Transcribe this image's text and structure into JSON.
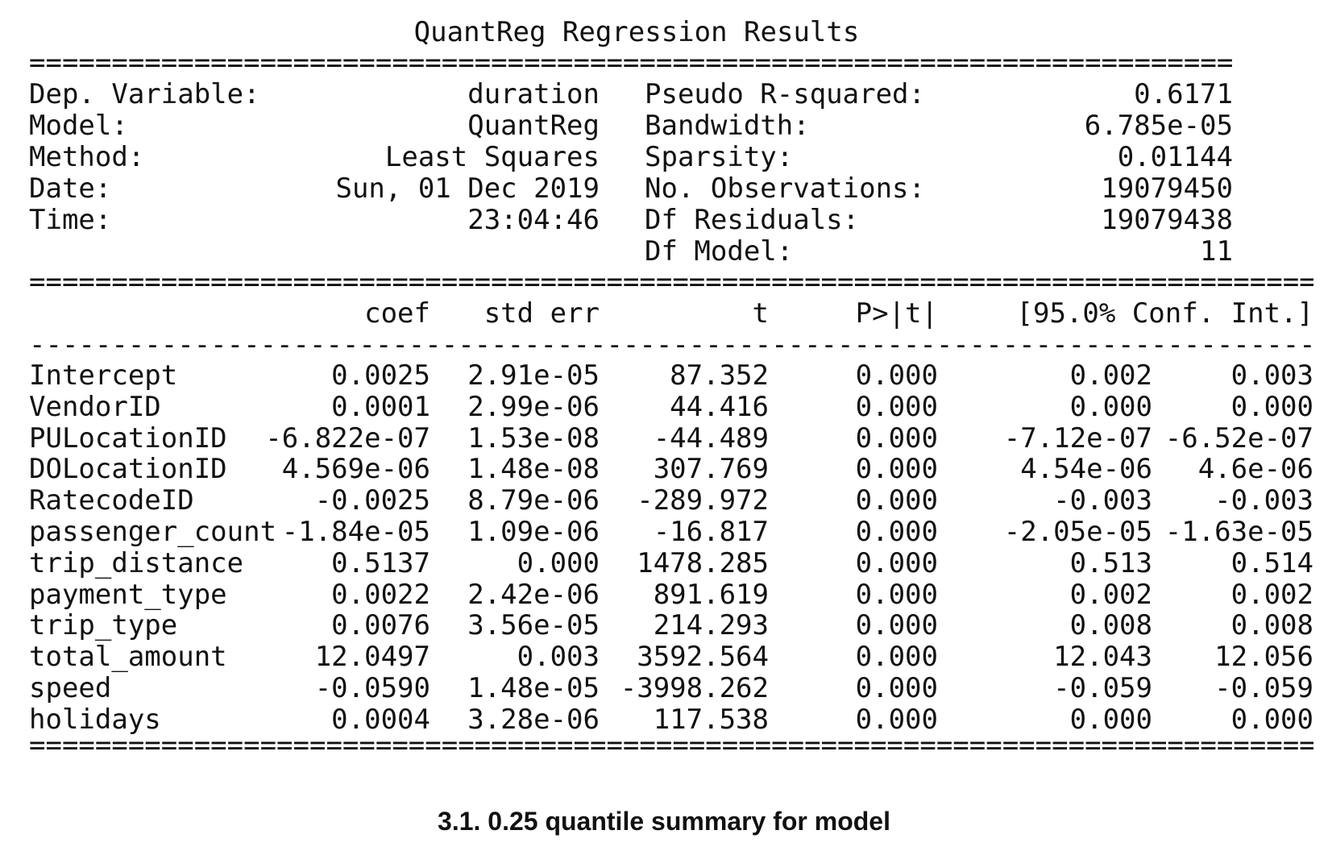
{
  "title": "QuantReg Regression Results",
  "rules": {
    "double_top": "=============================================================================",
    "double_mid": "==================================================================================",
    "dash": "----------------------------------------------------------------------------------",
    "double_bottom": "=================================================================================="
  },
  "info_left": [
    {
      "label": "Dep. Variable:",
      "value": "duration"
    },
    {
      "label": "Model:",
      "value": "QuantReg"
    },
    {
      "label": "Method:",
      "value": "Least Squares"
    },
    {
      "label": "Date:",
      "value": "Sun, 01 Dec 2019"
    },
    {
      "label": "Time:",
      "value": "23:04:46"
    }
  ],
  "info_right": [
    {
      "label": "Pseudo R-squared:",
      "value": "0.6171"
    },
    {
      "label": "Bandwidth:",
      "value": "6.785e-05"
    },
    {
      "label": "Sparsity:",
      "value": "0.01144"
    },
    {
      "label": "No. Observations:",
      "value": "19079450"
    },
    {
      "label": "Df Residuals:",
      "value": "19079438"
    },
    {
      "label": "Df Model:",
      "value": "11"
    }
  ],
  "columns": {
    "coef": "coef",
    "std_err": "std err",
    "t": "t",
    "p": "P>|t|",
    "ci": "[95.0% Conf. Int.]"
  },
  "rows": [
    {
      "name": "Intercept",
      "coef": "0.0025",
      "std_err": "2.91e-05",
      "t": "87.352",
      "p": "0.000",
      "lo": "0.002",
      "hi": "0.003"
    },
    {
      "name": "VendorID",
      "coef": "0.0001",
      "std_err": "2.99e-06",
      "t": "44.416",
      "p": "0.000",
      "lo": "0.000",
      "hi": "0.000"
    },
    {
      "name": "PULocationID",
      "coef": "-6.822e-07",
      "std_err": "1.53e-08",
      "t": "-44.489",
      "p": "0.000",
      "lo": "-7.12e-07",
      "hi": "-6.52e-07"
    },
    {
      "name": "DOLocationID",
      "coef": "4.569e-06",
      "std_err": "1.48e-08",
      "t": "307.769",
      "p": "0.000",
      "lo": "4.54e-06",
      "hi": "4.6e-06"
    },
    {
      "name": "RatecodeID",
      "coef": "-0.0025",
      "std_err": "8.79e-06",
      "t": "-289.972",
      "p": "0.000",
      "lo": "-0.003",
      "hi": "-0.003"
    },
    {
      "name": "passenger_count",
      "coef": "-1.84e-05",
      "std_err": "1.09e-06",
      "t": "-16.817",
      "p": "0.000",
      "lo": "-2.05e-05",
      "hi": "-1.63e-05"
    },
    {
      "name": "trip_distance",
      "coef": "0.5137",
      "std_err": "0.000",
      "t": "1478.285",
      "p": "0.000",
      "lo": "0.513",
      "hi": "0.514"
    },
    {
      "name": "payment_type",
      "coef": "0.0022",
      "std_err": "2.42e-06",
      "t": "891.619",
      "p": "0.000",
      "lo": "0.002",
      "hi": "0.002"
    },
    {
      "name": "trip_type",
      "coef": "0.0076",
      "std_err": "3.56e-05",
      "t": "214.293",
      "p": "0.000",
      "lo": "0.008",
      "hi": "0.008"
    },
    {
      "name": "total_amount",
      "coef": "12.0497",
      "std_err": "0.003",
      "t": "3592.564",
      "p": "0.000",
      "lo": "12.043",
      "hi": "12.056"
    },
    {
      "name": "speed",
      "coef": "-0.0590",
      "std_err": "1.48e-05",
      "t": "-3998.262",
      "p": "0.000",
      "lo": "-0.059",
      "hi": "-0.059"
    },
    {
      "name": "holidays",
      "coef": "0.0004",
      "std_err": "3.28e-06",
      "t": "117.538",
      "p": "0.000",
      "lo": "0.000",
      "hi": "0.000"
    }
  ],
  "caption": "3.1. 0.25 quantile summary for model"
}
